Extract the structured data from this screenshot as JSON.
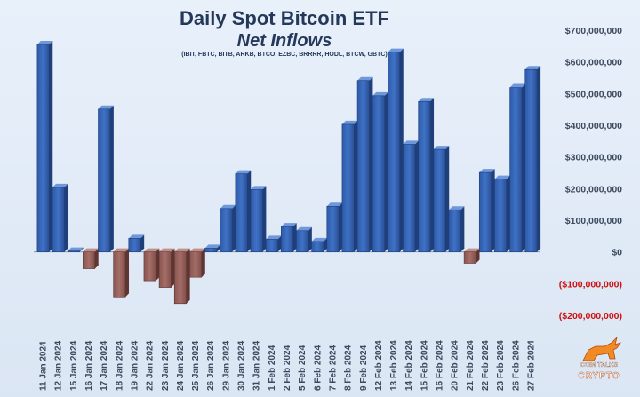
{
  "title": "Daily Spot Bitcoin ETF",
  "subtitle": "Net Inflows",
  "tickers": "(IBIT, FBTC, BITB, ARKB, BTCO, EZBC, BRRRR, HODL, BTCW, GBTC)",
  "logo": {
    "line1": "COIN TALKS",
    "line2": "CRYPTO"
  },
  "colors": {
    "positive": "#3f72c6",
    "negative": "#a56e68",
    "axis_positive": "#3c4a5e",
    "axis_negative": "#cc1111"
  },
  "chart_data": {
    "type": "bar",
    "title": "Daily Spot Bitcoin ETF",
    "subtitle": "Net Inflows",
    "ylim": [
      -200000000,
      700000000
    ],
    "yticks": [
      {
        "value": 700000000,
        "label": "$700,000,000"
      },
      {
        "value": 600000000,
        "label": "$600,000,000"
      },
      {
        "value": 500000000,
        "label": "$500,000,000"
      },
      {
        "value": 400000000,
        "label": "$400,000,000"
      },
      {
        "value": 300000000,
        "label": "$300,000,000"
      },
      {
        "value": 200000000,
        "label": "$200,000,000"
      },
      {
        "value": 100000000,
        "label": "$100,000,000"
      },
      {
        "value": 0,
        "label": "$0"
      },
      {
        "value": -100000000,
        "label": "($100,000,000)"
      },
      {
        "value": -200000000,
        "label": "($200,000,000)"
      }
    ],
    "categories": [
      "11 Jan 2024",
      "12 Jan 2024",
      "15 Jan 2024",
      "16 Jan 2024",
      "17 Jan 2024",
      "18 Jan 2024",
      "19 Jan 2024",
      "22 Jan 2024",
      "23 Jan 2024",
      "24 Jan 2024",
      "25 Jan 2024",
      "26 Jan 2024",
      "29 Jan 2024",
      "30 Jan 2024",
      "31 Jan 2024",
      "1 Feb 2024",
      "2 Feb 2024",
      "5 Feb 2024",
      "6 Feb 2024",
      "7 Feb 2024",
      "8 Feb 2024",
      "9 Feb 2024",
      "12 Feb 2024",
      "13 Feb 2024",
      "14 Feb 2024",
      "15 Feb 2024",
      "16 Feb 2024",
      "20 Feb 2024",
      "21 Feb 2024",
      "22 Feb 2024",
      "23 Feb 2024",
      "26 Feb 2024",
      "27 Feb 2024"
    ],
    "values": [
      655000000,
      204000000,
      3000000,
      -53000000,
      451000000,
      -142000000,
      43000000,
      -91000000,
      -112000000,
      -163000000,
      -80000000,
      12000000,
      137000000,
      247000000,
      197000000,
      40000000,
      80000000,
      67000000,
      33000000,
      144000000,
      403000000,
      541000000,
      493000000,
      631000000,
      340000000,
      475000000,
      324000000,
      133000000,
      -36000000,
      251000000,
      230000000,
      519000000,
      576000000
    ],
    "grid": false,
    "legend": "none"
  }
}
